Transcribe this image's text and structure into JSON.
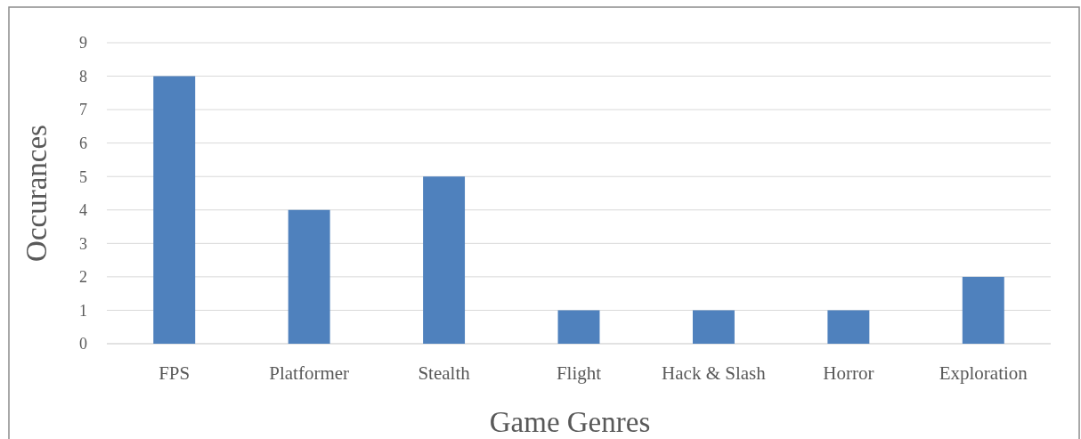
{
  "chart_data": {
    "type": "bar",
    "xlabel": "Game Genres",
    "ylabel": "Occurances",
    "categories": [
      "FPS",
      "Platformer",
      "Stealth",
      "Flight",
      "Hack & Slash",
      "Horror",
      "Exploration"
    ],
    "values": [
      8,
      4,
      5,
      1,
      1,
      1,
      2
    ],
    "color": "#4f81bd",
    "ylim": [
      0,
      9
    ],
    "yticks": [
      0,
      1,
      2,
      3,
      4,
      5,
      6,
      7,
      8,
      9
    ],
    "grid": "y"
  }
}
